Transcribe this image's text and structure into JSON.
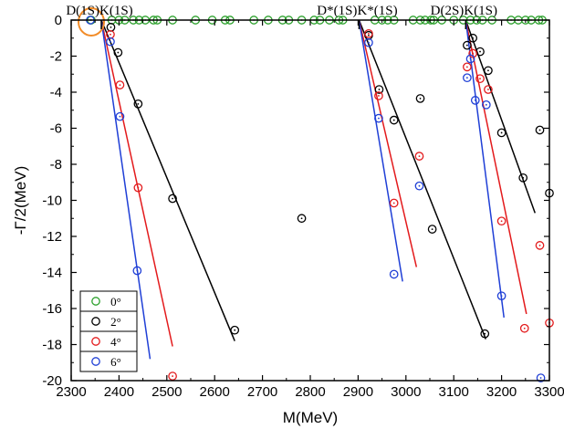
{
  "chart_data": {
    "type": "scatter",
    "xlabel": "M(MeV)",
    "ylabel": "-Γ/2(MeV)",
    "xlim": [
      2300,
      3300
    ],
    "ylim": [
      -20,
      0
    ],
    "xticks": [
      2300,
      2400,
      2500,
      2600,
      2700,
      2800,
      2900,
      3000,
      3100,
      3200,
      3300
    ],
    "yticks": [
      0,
      -2,
      -4,
      -6,
      -8,
      -10,
      -12,
      -14,
      -16,
      -18,
      -20
    ],
    "grid": false,
    "legend_position": "bottom-left",
    "thresholds": [
      {
        "label_prefix": "D(1S)",
        "label_suffix": "K(1S)",
        "x": 2363
      },
      {
        "label_prefix": "D*(1S)",
        "label_suffix": "K*(1S)",
        "x": 2902
      },
      {
        "label_prefix": "D(2S)",
        "label_suffix": "K(1S)",
        "x": 3125
      }
    ],
    "highlight_pole": {
      "x": 2342,
      "y": 0,
      "color": "#f28c28"
    },
    "series": [
      {
        "name": "0°",
        "color": "#2ca02c",
        "points": [
          [
            2342,
            0
          ],
          [
            2385,
            0
          ],
          [
            2400,
            0
          ],
          [
            2412,
            0
          ],
          [
            2430,
            0
          ],
          [
            2442,
            0
          ],
          [
            2455,
            0
          ],
          [
            2472,
            0
          ],
          [
            2480,
            0
          ],
          [
            2512,
            0
          ],
          [
            2560,
            0
          ],
          [
            2595,
            0
          ],
          [
            2622,
            0
          ],
          [
            2632,
            0
          ],
          [
            2682,
            0
          ],
          [
            2712,
            0
          ],
          [
            2742,
            0
          ],
          [
            2755,
            0
          ],
          [
            2782,
            0
          ],
          [
            2808,
            0
          ],
          [
            2820,
            0
          ],
          [
            2840,
            0
          ],
          [
            2860,
            0
          ],
          [
            2868,
            0
          ],
          [
            2935,
            0
          ],
          [
            2950,
            0
          ],
          [
            2962,
            0
          ],
          [
            2975,
            0
          ],
          [
            3015,
            0
          ],
          [
            3030,
            0
          ],
          [
            3040,
            0
          ],
          [
            3052,
            0
          ],
          [
            3058,
            0
          ],
          [
            3075,
            0
          ],
          [
            3100,
            0
          ],
          [
            3120,
            0
          ],
          [
            3135,
            0
          ],
          [
            3148,
            0
          ],
          [
            3160,
            0
          ],
          [
            3180,
            0
          ],
          [
            3220,
            0
          ],
          [
            3235,
            0
          ],
          [
            3250,
            0
          ],
          [
            3262,
            0
          ],
          [
            3278,
            0
          ],
          [
            3285,
            0
          ]
        ]
      },
      {
        "name": "2°",
        "color": "#000000",
        "points": [
          [
            2383,
            -0.4
          ],
          [
            2398,
            -1.8
          ],
          [
            2440,
            -4.65
          ],
          [
            2512,
            -9.9
          ],
          [
            2642,
            -17.2
          ],
          [
            2782,
            -11.0
          ],
          [
            2922,
            -0.85
          ],
          [
            2944,
            -3.85
          ],
          [
            2975,
            -5.55
          ],
          [
            3030,
            -4.35
          ],
          [
            3055,
            -11.6
          ],
          [
            3165,
            -17.4
          ],
          [
            3128,
            -1.4
          ],
          [
            3140,
            -1.0
          ],
          [
            3155,
            -1.75
          ],
          [
            3172,
            -2.8
          ],
          [
            3200,
            -6.25
          ],
          [
            3245,
            -8.75
          ],
          [
            3280,
            -6.1
          ],
          [
            3300,
            -9.6
          ]
        ]
      },
      {
        "name": "4°",
        "color": "#e31a1c",
        "points": [
          [
            2382,
            -0.8
          ],
          [
            2402,
            -3.6
          ],
          [
            2440,
            -9.3
          ],
          [
            2512,
            -19.75
          ],
          [
            2922,
            -0.75
          ],
          [
            2943,
            -4.2
          ],
          [
            2975,
            -10.15
          ],
          [
            3028,
            -7.55
          ],
          [
            3128,
            -2.6
          ],
          [
            3140,
            -1.85
          ],
          [
            3155,
            -3.25
          ],
          [
            3172,
            -3.85
          ],
          [
            3200,
            -11.15
          ],
          [
            3248,
            -17.1
          ],
          [
            3280,
            -12.5
          ],
          [
            3300,
            -16.8
          ]
        ]
      },
      {
        "name": "6°",
        "color": "#1f3fd6",
        "points": [
          [
            2340,
            0
          ],
          [
            2382,
            -1.2
          ],
          [
            2402,
            -5.35
          ],
          [
            2438,
            -13.9
          ],
          [
            2922,
            -1.25
          ],
          [
            2943,
            -5.45
          ],
          [
            2975,
            -14.1
          ],
          [
            3028,
            -9.2
          ],
          [
            3128,
            -3.2
          ],
          [
            3135,
            -2.15
          ],
          [
            3145,
            -4.45
          ],
          [
            3168,
            -4.7
          ],
          [
            3200,
            -15.3
          ],
          [
            3282,
            -19.85
          ]
        ]
      }
    ],
    "trend_lines": [
      {
        "series": "2°",
        "from": [
          2363,
          0
        ],
        "to": [
          2642,
          -17.8
        ]
      },
      {
        "series": "4°",
        "from": [
          2363,
          0
        ],
        "to": [
          2512,
          -18.1
        ]
      },
      {
        "series": "6°",
        "from": [
          2363,
          0
        ],
        "to": [
          2465,
          -18.8
        ]
      },
      {
        "series": "2°",
        "from": [
          2902,
          0
        ],
        "to": [
          3167,
          -17.7
        ]
      },
      {
        "series": "4°",
        "from": [
          2902,
          0
        ],
        "to": [
          3022,
          -13.7
        ]
      },
      {
        "series": "6°",
        "from": [
          2902,
          0
        ],
        "to": [
          2993,
          -14.5
        ]
      },
      {
        "series": "2°",
        "from": [
          3125,
          0
        ],
        "to": [
          3270,
          -10.7
        ]
      },
      {
        "series": "4°",
        "from": [
          3125,
          0
        ],
        "to": [
          3252,
          -16.3
        ]
      },
      {
        "series": "6°",
        "from": [
          3125,
          0
        ],
        "to": [
          3205,
          -16.5
        ]
      }
    ]
  }
}
